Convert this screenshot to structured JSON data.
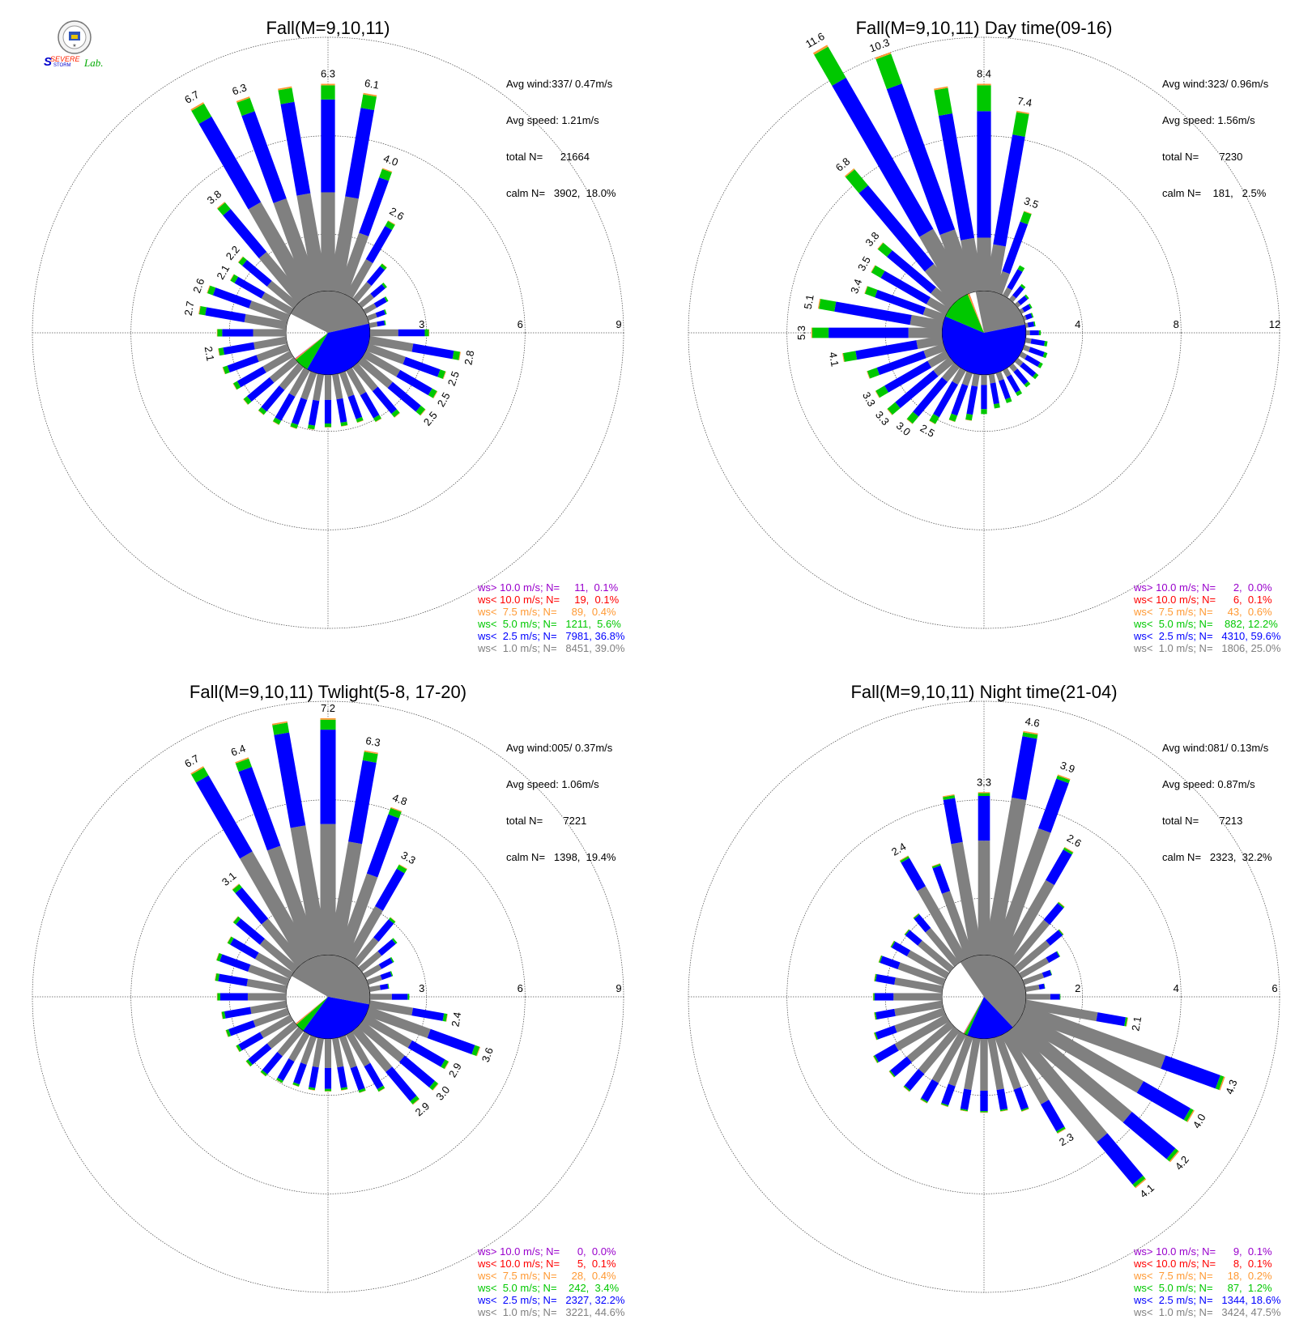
{
  "logo": {
    "text": "SSevere Storm Lab.",
    "seal": "university-seal"
  },
  "colors": {
    "gt10": "#9900cc",
    "lt10": "#ff0000",
    "lt75": "#ff9933",
    "lt5": "#00c800",
    "lt25": "#0000ff",
    "lt1": "#808080"
  },
  "chart_data": [
    {
      "type": "windrose",
      "title": "Fall(M=9,10,11)",
      "stats": {
        "avg_wind": "Avg wind:337/ 0.47m/s",
        "avg_speed": "Avg speed: 1.21m/s",
        "total": "total N=      21664",
        "calm": "calm N=   3902,  18.0%"
      },
      "rmax": 9,
      "rings": [
        3,
        6,
        9
      ],
      "ring_labels": [
        "3",
        "6",
        "9"
      ],
      "calm_pie": [
        39.0,
        36.8,
        5.6,
        0.4,
        0.1,
        0.1
      ],
      "sectors": [
        6.3,
        6.1,
        4.0,
        2.6,
        1.4,
        1.0,
        0.8,
        0.6,
        0.5,
        1.8,
        2.8,
        2.5,
        2.5,
        2.5,
        2.0,
        1.8,
        1.6,
        1.6,
        1.6,
        1.7,
        1.8,
        1.9,
        1.9,
        2.0,
        2.0,
        2.1,
        2.1,
        2.1,
        2.7,
        2.6,
        2.1,
        2.2,
        3.8,
        6.7,
        6.3,
        6.3
      ],
      "labels": [
        {
          "i": 0,
          "text": "6.3"
        },
        {
          "i": 1,
          "text": "6.1"
        },
        {
          "i": 2,
          "text": "4.0"
        },
        {
          "i": 3,
          "text": "2.6"
        },
        {
          "i": 10,
          "text": "2.8"
        },
        {
          "i": 11,
          "text": "2.5"
        },
        {
          "i": 12,
          "text": "2.5"
        },
        {
          "i": 13,
          "text": "2.5"
        },
        {
          "i": 26,
          "text": "2.1"
        },
        {
          "i": 28,
          "text": "2.7"
        },
        {
          "i": 29,
          "text": "2.6"
        },
        {
          "i": 30,
          "text": "2.1"
        },
        {
          "i": 31,
          "text": "2.2"
        },
        {
          "i": 32,
          "text": "3.8"
        },
        {
          "i": 33,
          "text": "6.7"
        },
        {
          "i": 34,
          "text": "6.3"
        }
      ],
      "legend": [
        {
          "text": "ws> 10.0 m/s; N=     11,  0.1%",
          "color": "#9900cc"
        },
        {
          "text": "ws< 10.0 m/s; N=     19,  0.1%",
          "color": "#ff0000"
        },
        {
          "text": "ws<  7.5 m/s; N=     89,  0.4%",
          "color": "#ff9933"
        },
        {
          "text": "ws<  5.0 m/s; N=   1211,  5.6%",
          "color": "#00c800"
        },
        {
          "text": "ws<  2.5 m/s; N=   7981, 36.8%",
          "color": "#0000ff"
        },
        {
          "text": "ws<  1.0 m/s; N=   8451, 39.0%",
          "color": "#808080"
        }
      ]
    },
    {
      "type": "windrose",
      "title": "Fall(M=9,10,11) Day time(09-16)",
      "stats": {
        "avg_wind": "Avg wind:323/ 0.96m/s",
        "avg_speed": "Avg speed: 1.56m/s",
        "total": "total N=       7230",
        "calm": "calm N=    181,   2.5%"
      },
      "rmax": 12,
      "rings": [
        4,
        8,
        12
      ],
      "ring_labels": [
        "4",
        "8",
        "12"
      ],
      "calm_pie": [
        25.0,
        59.6,
        12.2,
        0.6,
        0.1,
        0.0
      ],
      "sectors": [
        8.4,
        7.4,
        3.5,
        1.4,
        0.8,
        0.6,
        0.5,
        0.4,
        0.4,
        0.6,
        0.9,
        1.0,
        1.0,
        1.1,
        1.1,
        1.2,
        1.3,
        1.4,
        1.6,
        1.9,
        2.1,
        2.5,
        3.0,
        3.3,
        3.3,
        3.3,
        4.1,
        5.3,
        5.1,
        3.4,
        3.5,
        3.8,
        6.8,
        11.6,
        10.3,
        8.4
      ],
      "labels": [
        {
          "i": 0,
          "text": "8.4"
        },
        {
          "i": 1,
          "text": "7.4"
        },
        {
          "i": 2,
          "text": "3.5"
        },
        {
          "i": 21,
          "text": "2.5"
        },
        {
          "i": 22,
          "text": "3.0"
        },
        {
          "i": 23,
          "text": "3.3"
        },
        {
          "i": 24,
          "text": "3.3"
        },
        {
          "i": 26,
          "text": "4.1"
        },
        {
          "i": 27,
          "text": "5.3"
        },
        {
          "i": 28,
          "text": "5.1"
        },
        {
          "i": 29,
          "text": "3.4"
        },
        {
          "i": 30,
          "text": "3.5"
        },
        {
          "i": 31,
          "text": "3.8"
        },
        {
          "i": 32,
          "text": "6.8"
        },
        {
          "i": 33,
          "text": "11.6"
        },
        {
          "i": 34,
          "text": "10.3"
        }
      ],
      "legend": [
        {
          "text": "ws> 10.0 m/s; N=      2,  0.0%",
          "color": "#9900cc"
        },
        {
          "text": "ws< 10.0 m/s; N=      6,  0.1%",
          "color": "#ff0000"
        },
        {
          "text": "ws<  7.5 m/s; N=     43,  0.6%",
          "color": "#ff9933"
        },
        {
          "text": "ws<  5.0 m/s; N=    882, 12.2%",
          "color": "#00c800"
        },
        {
          "text": "ws<  2.5 m/s; N=   4310, 59.6%",
          "color": "#0000ff"
        },
        {
          "text": "ws<  1.0 m/s; N=   1806, 25.0%",
          "color": "#808080"
        }
      ]
    },
    {
      "type": "windrose",
      "title": "Fall(M=9,10,11) Twlight(5-8, 17-20)",
      "stats": {
        "avg_wind": "Avg wind:005/ 0.37m/s",
        "avg_speed": "Avg speed: 1.06m/s",
        "total": "total N=       7221",
        "calm": "calm N=   1398,  19.4%"
      },
      "rmax": 9,
      "rings": [
        3,
        6,
        9
      ],
      "ring_labels": [
        "3",
        "6",
        "9"
      ],
      "calm_pie": [
        44.6,
        32.2,
        3.4,
        0.4,
        0.1,
        0.0
      ],
      "sectors": [
        7.2,
        6.3,
        4.8,
        3.3,
        1.8,
        1.4,
        1.0,
        0.8,
        0.6,
        1.2,
        2.4,
        3.6,
        2.9,
        3.0,
        2.9,
        2.0,
        1.8,
        1.6,
        1.6,
        1.6,
        1.6,
        1.7,
        1.8,
        1.9,
        1.9,
        2.0,
        2.0,
        2.1,
        2.2,
        2.3,
        2.2,
        2.4,
        3.1,
        6.7,
        6.4,
        7.2
      ],
      "labels": [
        {
          "i": 0,
          "text": "7.2"
        },
        {
          "i": 1,
          "text": "6.3"
        },
        {
          "i": 2,
          "text": "4.8"
        },
        {
          "i": 3,
          "text": "3.3"
        },
        {
          "i": 10,
          "text": "2.4"
        },
        {
          "i": 11,
          "text": "3.6"
        },
        {
          "i": 12,
          "text": "2.9"
        },
        {
          "i": 13,
          "text": "3.0"
        },
        {
          "i": 14,
          "text": "2.9"
        },
        {
          "i": 32,
          "text": "3.1"
        },
        {
          "i": 33,
          "text": "6.7"
        },
        {
          "i": 34,
          "text": "6.4"
        }
      ],
      "legend": [
        {
          "text": "ws> 10.0 m/s; N=      0,  0.0%",
          "color": "#9900cc"
        },
        {
          "text": "ws< 10.0 m/s; N=      5,  0.1%",
          "color": "#ff0000"
        },
        {
          "text": "ws<  7.5 m/s; N=     28,  0.4%",
          "color": "#ff9933"
        },
        {
          "text": "ws<  5.0 m/s; N=    242,  3.4%",
          "color": "#00c800"
        },
        {
          "text": "ws<  2.5 m/s; N=   2327, 32.2%",
          "color": "#0000ff"
        },
        {
          "text": "ws<  1.0 m/s; N=   3221, 44.6%",
          "color": "#808080"
        }
      ]
    },
    {
      "type": "windrose",
      "title": "Fall(M=9,10,11) Night time(21-04)",
      "stats": {
        "avg_wind": "Avg wind:081/ 0.13m/s",
        "avg_speed": "Avg speed: 0.87m/s",
        "total": "total N=       7213",
        "calm": "calm N=   2323,  32.2%"
      },
      "rmax": 6,
      "rings": [
        2,
        4,
        6
      ],
      "ring_labels": [
        "2",
        "4",
        "6"
      ],
      "calm_pie": [
        47.5,
        18.6,
        1.2,
        0.2,
        0.1,
        0.1
      ],
      "sectors": [
        3.3,
        4.6,
        3.9,
        2.6,
        1.6,
        1.2,
        0.9,
        0.6,
        0.4,
        0.7,
        2.1,
        4.3,
        4.0,
        4.2,
        4.1,
        2.3,
        1.6,
        1.5,
        1.5,
        1.5,
        1.5,
        1.6,
        1.6,
        1.6,
        1.7,
        1.5,
        1.4,
        1.4,
        1.4,
        1.4,
        1.3,
        1.2,
        1.3,
        2.4,
        2.0,
        3.3
      ],
      "labels": [
        {
          "i": 0,
          "text": "3.3"
        },
        {
          "i": 1,
          "text": "4.6"
        },
        {
          "i": 2,
          "text": "3.9"
        },
        {
          "i": 3,
          "text": "2.6"
        },
        {
          "i": 10,
          "text": "2.1"
        },
        {
          "i": 11,
          "text": "4.3"
        },
        {
          "i": 12,
          "text": "4.0"
        },
        {
          "i": 13,
          "text": "4.2"
        },
        {
          "i": 14,
          "text": "4.1"
        },
        {
          "i": 15,
          "text": "2.3"
        },
        {
          "i": 33,
          "text": "2.4"
        }
      ],
      "legend": [
        {
          "text": "ws> 10.0 m/s; N=      9,  0.1%",
          "color": "#9900cc"
        },
        {
          "text": "ws< 10.0 m/s; N=      8,  0.1%",
          "color": "#ff0000"
        },
        {
          "text": "ws<  7.5 m/s; N=     18,  0.2%",
          "color": "#ff9933"
        },
        {
          "text": "ws<  5.0 m/s; N=     87,  1.2%",
          "color": "#00c800"
        },
        {
          "text": "ws<  2.5 m/s; N=   1344, 18.6%",
          "color": "#0000ff"
        },
        {
          "text": "ws<  1.0 m/s; N=   3424, 47.5%",
          "color": "#808080"
        }
      ]
    }
  ]
}
